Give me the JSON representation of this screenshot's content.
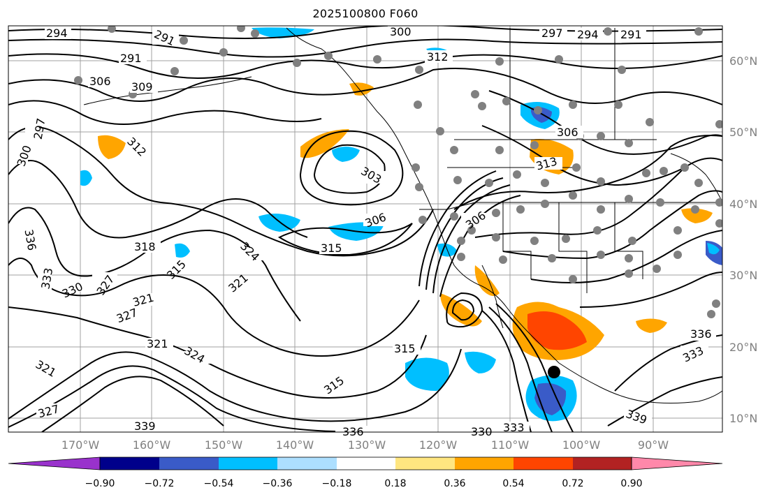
{
  "title": "2025100800 F060",
  "map": {
    "lon_labels": [
      "170°W",
      "160°W",
      "150°W",
      "140°W",
      "130°W",
      "120°W",
      "110°W",
      "100°W",
      "90°W"
    ],
    "lat_labels": [
      "60°N",
      "50°N",
      "40°N",
      "30°N",
      "20°N",
      "10°N"
    ],
    "contour_labels": [
      "294",
      "291",
      "300",
      "297",
      "294",
      "291",
      "312",
      "306",
      "309",
      "291",
      "300",
      "297",
      "312",
      "303",
      "306",
      "315",
      "306",
      "318",
      "315",
      "324",
      "321",
      "336",
      "333",
      "330",
      "327",
      "321",
      "327",
      "321",
      "324",
      "321",
      "315",
      "315",
      "330",
      "333",
      "339",
      "336",
      "339",
      "327",
      "336",
      "333",
      "306",
      "313"
    ],
    "colors": {
      "grid": "#a0a0a0",
      "contour": "#000000",
      "coast": "#000000",
      "station": "#808080",
      "marker": "#000000"
    }
  },
  "colorbar": {
    "ticks": [
      "−0.90",
      "−0.72",
      "−0.54",
      "−0.36",
      "−0.18",
      "0.18",
      "0.36",
      "0.54",
      "0.72",
      "0.90"
    ],
    "colors": [
      "#9932CC",
      "#00008B",
      "#3A5BC8",
      "#00BFFF",
      "#ADDFFF",
      "#FFFFFF",
      "#FFE680",
      "#FFA500",
      "#FF4500",
      "#B22222",
      "#FF88AA"
    ]
  }
}
